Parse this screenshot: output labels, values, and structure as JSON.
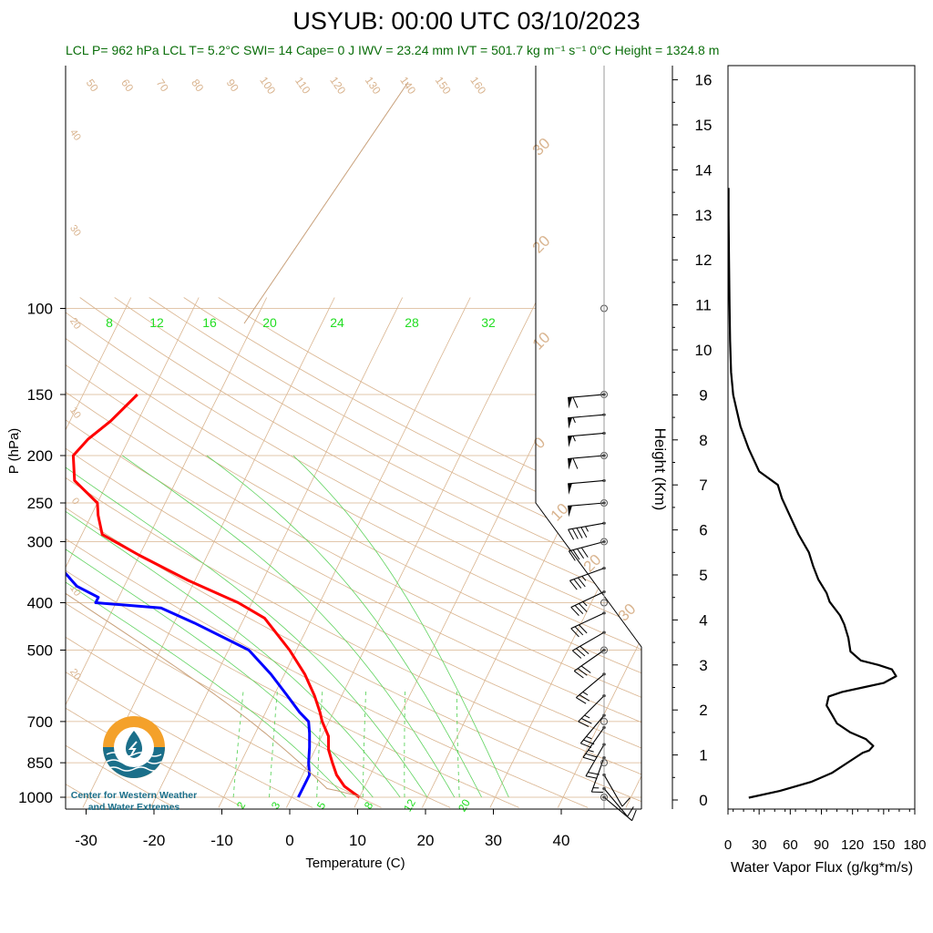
{
  "header": {
    "title": "USYUB: 00:00 UTC 03/10/2023",
    "info": "LCL P= 962 hPa  LCL T= 5.2°C  SWI= 14  Cape= 0 J  IWV = 23.24 mm  IVT = 501.7 kg m⁻¹ s⁻¹  0°C Height = 1324.8 m"
  },
  "logo": {
    "line1": "Center for Western Weather",
    "line2": "and Water Extremes",
    "colors": {
      "orange": "#f4a12a",
      "teal": "#1b6f8a"
    }
  },
  "colors": {
    "temperature": "#ff0000",
    "dewpoint": "#0000ff",
    "dry_adiabats": "#d9b48f",
    "isotherms": "#d9b48f",
    "mixing_ratio": "#5fd35f",
    "moist_adiabats": "#5fd35f",
    "info_text": "#0a6e0a"
  },
  "chart_data": [
    {
      "type": "line",
      "title": "",
      "xlabel": "Temperature (C)",
      "ylabel": "P (hPa)",
      "x_ticks": [
        -30,
        -20,
        -10,
        0,
        10,
        20,
        30,
        40
      ],
      "y_ticks": [
        100,
        150,
        200,
        250,
        300,
        400,
        500,
        700,
        850,
        1000
      ],
      "y_scale": "log",
      "ylim": [
        1000,
        100
      ],
      "skew": true,
      "temperature_profile": [
        [
          150,
          -52
        ],
        [
          170,
          -54
        ],
        [
          185,
          -56
        ],
        [
          200,
          -57
        ],
        [
          225,
          -55
        ],
        [
          250,
          -50
        ],
        [
          265,
          -49
        ],
        [
          290,
          -47
        ],
        [
          320,
          -40
        ],
        [
          360,
          -31
        ],
        [
          400,
          -22
        ],
        [
          430,
          -17
        ],
        [
          500,
          -11
        ],
        [
          560,
          -7
        ],
        [
          620,
          -4
        ],
        [
          670,
          -2
        ],
        [
          700,
          -1
        ],
        [
          750,
          1
        ],
        [
          800,
          2
        ],
        [
          850,
          3.5
        ],
        [
          900,
          5
        ],
        [
          950,
          7
        ],
        [
          1000,
          10
        ]
      ],
      "dewpoint_profile": [
        [
          150,
          -63
        ],
        [
          165,
          -67
        ],
        [
          185,
          -71
        ],
        [
          200,
          -74
        ],
        [
          215,
          -77
        ],
        [
          240,
          -81
        ],
        [
          255,
          -80
        ],
        [
          275,
          -76
        ],
        [
          290,
          -70
        ],
        [
          300,
          -69
        ],
        [
          315,
          -67
        ],
        [
          330,
          -53
        ],
        [
          345,
          -50
        ],
        [
          370,
          -47
        ],
        [
          390,
          -43
        ],
        [
          400,
          -43
        ],
        [
          410,
          -33
        ],
        [
          440,
          -27
        ],
        [
          500,
          -17
        ],
        [
          560,
          -12
        ],
        [
          620,
          -8
        ],
        [
          670,
          -5
        ],
        [
          700,
          -3
        ],
        [
          740,
          -2
        ],
        [
          790,
          -1
        ],
        [
          850,
          0
        ],
        [
          900,
          1
        ],
        [
          1000,
          1
        ]
      ],
      "dry_adiabat_labels": [
        50,
        60,
        70,
        80,
        90,
        100,
        110,
        120,
        130,
        140,
        150,
        160
      ],
      "isotherm_labels": [
        40,
        30,
        20,
        10,
        0,
        -10,
        -20,
        -30
      ],
      "isotherm_right_labels": [
        30,
        20,
        10,
        0,
        10,
        20,
        30
      ],
      "mixing_ratio_labels_top": [
        8,
        12,
        16,
        20,
        24,
        28,
        32
      ],
      "mixing_ratio_labels_bottom": [
        2,
        3,
        5,
        8,
        12,
        20
      ],
      "wind_barbs": [
        {
          "p": 150,
          "dir": 265,
          "spd": 60
        },
        {
          "p": 165,
          "dir": 265,
          "spd": 55
        },
        {
          "p": 180,
          "dir": 265,
          "spd": 55
        },
        {
          "p": 200,
          "dir": 265,
          "spd": 60
        },
        {
          "p": 225,
          "dir": 265,
          "spd": 50
        },
        {
          "p": 250,
          "dir": 265,
          "spd": 50
        },
        {
          "p": 275,
          "dir": 260,
          "spd": 45
        },
        {
          "p": 300,
          "dir": 255,
          "spd": 40
        },
        {
          "p": 340,
          "dir": 250,
          "spd": 35
        },
        {
          "p": 380,
          "dir": 245,
          "spd": 35
        },
        {
          "p": 420,
          "dir": 245,
          "spd": 30
        },
        {
          "p": 460,
          "dir": 240,
          "spd": 30
        },
        {
          "p": 500,
          "dir": 235,
          "spd": 30
        },
        {
          "p": 560,
          "dir": 230,
          "spd": 25
        },
        {
          "p": 620,
          "dir": 225,
          "spd": 25
        },
        {
          "p": 680,
          "dir": 220,
          "spd": 25
        },
        {
          "p": 720,
          "dir": 215,
          "spd": 25
        },
        {
          "p": 780,
          "dir": 210,
          "spd": 20
        },
        {
          "p": 830,
          "dir": 200,
          "spd": 15
        },
        {
          "p": 900,
          "dir": 150,
          "spd": 10
        },
        {
          "p": 960,
          "dir": 140,
          "spd": 10
        },
        {
          "p": 1000,
          "dir": 130,
          "spd": 10
        }
      ]
    },
    {
      "type": "line",
      "title": "",
      "xlabel": "Water Vapor Flux (g/kg*m/s)",
      "ylabel": "Height (Km)",
      "x_ticks": [
        0,
        30,
        60,
        90,
        120,
        150,
        180
      ],
      "y_ticks": [
        0,
        1,
        2,
        3,
        4,
        5,
        6,
        7,
        8,
        9,
        10,
        11,
        12,
        13,
        14,
        15,
        16
      ],
      "xlim": [
        0,
        180
      ],
      "ylim": [
        0,
        16.4
      ],
      "series": [
        {
          "points": [
            [
              20,
              0.05
            ],
            [
              50,
              0.2
            ],
            [
              80,
              0.4
            ],
            [
              100,
              0.6
            ],
            [
              120,
              0.9
            ],
            [
              130,
              1.05
            ],
            [
              136,
              1.1
            ],
            [
              140,
              1.2
            ],
            [
              133,
              1.35
            ],
            [
              118,
              1.5
            ],
            [
              105,
              1.7
            ],
            [
              100,
              1.9
            ],
            [
              95,
              2.1
            ],
            [
              97,
              2.3
            ],
            [
              110,
              2.4
            ],
            [
              130,
              2.5
            ],
            [
              150,
              2.6
            ],
            [
              162,
              2.75
            ],
            [
              158,
              2.9
            ],
            [
              145,
              3.0
            ],
            [
              128,
              3.1
            ],
            [
              118,
              3.3
            ],
            [
              116,
              3.6
            ],
            [
              112,
              3.9
            ],
            [
              108,
              4.1
            ],
            [
              98,
              4.4
            ],
            [
              95,
              4.6
            ],
            [
              87,
              4.9
            ],
            [
              82,
              5.2
            ],
            [
              78,
              5.5
            ],
            [
              68,
              5.9
            ],
            [
              60,
              6.3
            ],
            [
              52,
              6.7
            ],
            [
              48,
              7.0
            ],
            [
              30,
              7.3
            ],
            [
              20,
              7.8
            ],
            [
              12,
              8.3
            ],
            [
              8,
              8.7
            ],
            [
              5,
              9.0
            ],
            [
              3,
              9.5
            ],
            [
              2,
              10.2
            ],
            [
              1.5,
              11.0
            ],
            [
              1,
              12.0
            ],
            [
              0.5,
              13.0
            ],
            [
              0.5,
              13.6
            ]
          ]
        }
      ]
    }
  ]
}
